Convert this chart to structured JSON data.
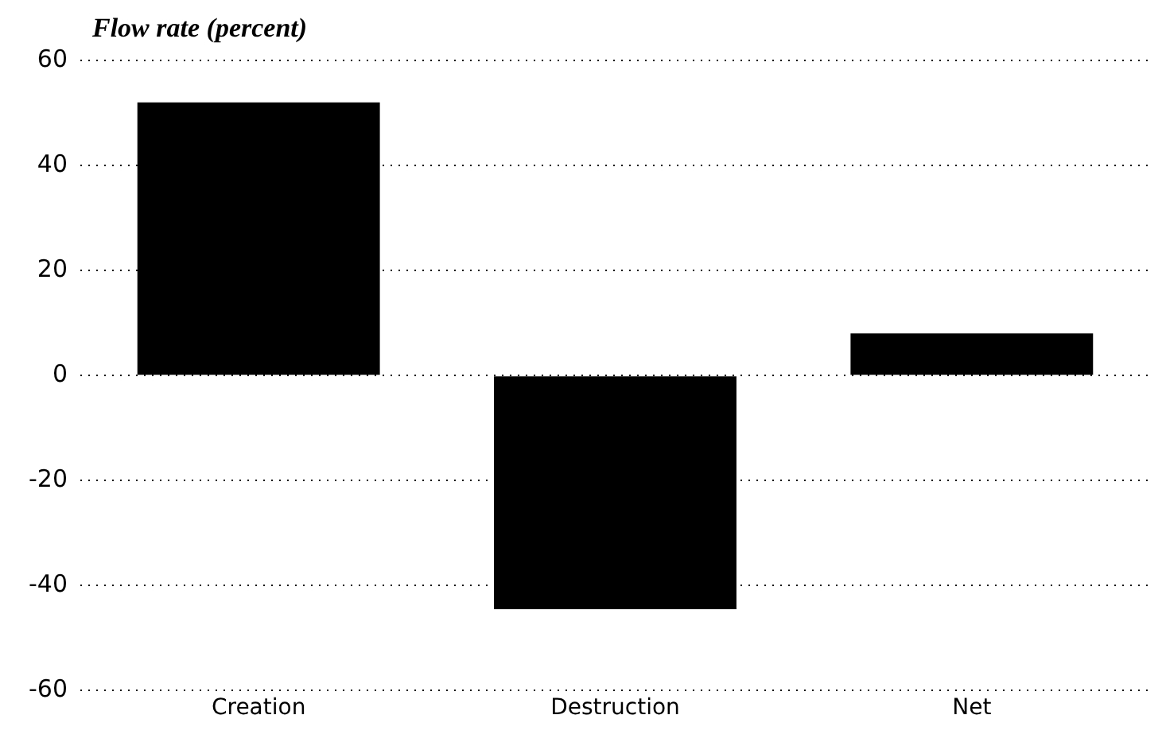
{
  "chart_data": {
    "type": "bar",
    "ylabel": "Flow rate (percent)",
    "categories": [
      "Creation",
      "Destruction",
      "Net"
    ],
    "values": [
      52,
      -44.5,
      8
    ],
    "color": "#000000",
    "ylim": [
      -60,
      60
    ],
    "yticks": [
      -60,
      -40,
      -20,
      0,
      20,
      40,
      60
    ],
    "grid": "y"
  }
}
